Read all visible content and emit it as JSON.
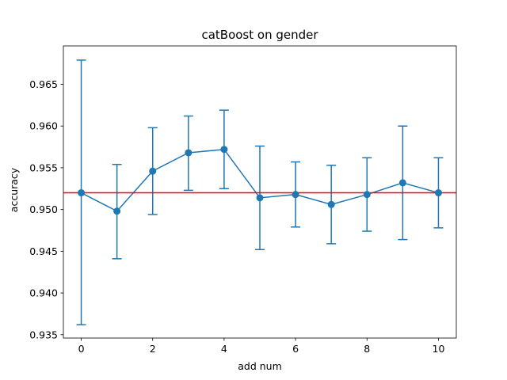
{
  "chart_data": {
    "type": "line",
    "title": "catBoost on gender",
    "xlabel": "add num",
    "ylabel": "accuracy",
    "xlim": [
      -0.5,
      10.5
    ],
    "ylim": [
      0.9346,
      0.9696
    ],
    "xticks": [
      0,
      2,
      4,
      6,
      8,
      10
    ],
    "xtick_labels": [
      "0",
      "2",
      "4",
      "6",
      "8",
      "10"
    ],
    "yticks": [
      0.935,
      0.94,
      0.945,
      0.95,
      0.955,
      0.96,
      0.965
    ],
    "ytick_labels": [
      "0.935",
      "0.940",
      "0.945",
      "0.950",
      "0.955",
      "0.960",
      "0.965"
    ],
    "grid": false,
    "series": [
      {
        "color": "#1f77b4",
        "x": [
          0,
          1,
          2,
          3,
          4,
          5,
          6,
          7,
          8,
          9,
          10
        ],
        "y": [
          0.952,
          0.9498,
          0.9546,
          0.9568,
          0.9572,
          0.9514,
          0.9518,
          0.9506,
          0.9518,
          0.9532,
          0.952
        ],
        "yerr_low": [
          0.9362,
          0.9441,
          0.9494,
          0.9523,
          0.9525,
          0.9452,
          0.9479,
          0.9459,
          0.9474,
          0.9464,
          0.9478
        ],
        "yerr_high": [
          0.9679,
          0.9554,
          0.9598,
          0.9612,
          0.9619,
          0.9576,
          0.9557,
          0.9553,
          0.9562,
          0.96,
          0.9562
        ]
      }
    ],
    "reference_line": {
      "y": 0.952,
      "color": "#ff0000"
    }
  }
}
